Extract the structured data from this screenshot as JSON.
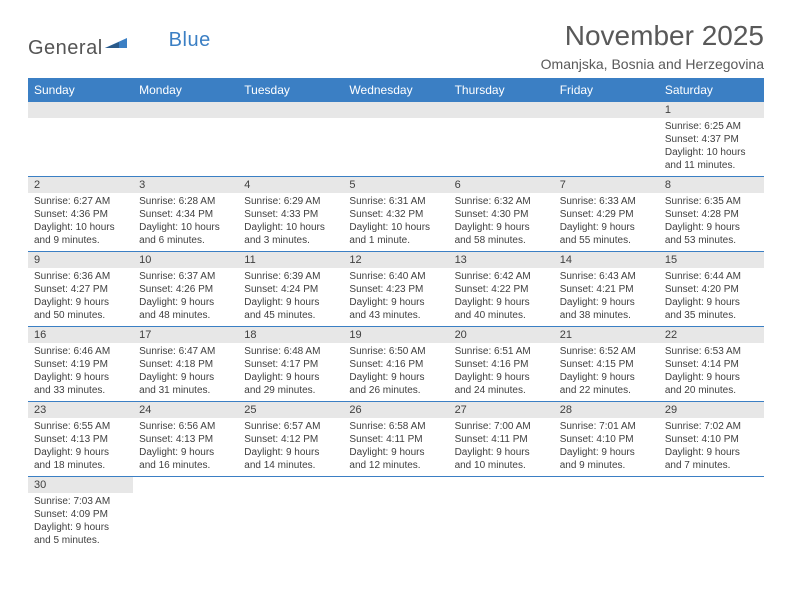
{
  "logo": {
    "part1": "General",
    "part2": "Blue"
  },
  "title": "November 2025",
  "location": "Omanjska, Bosnia and Herzegovina",
  "colors": {
    "header_bg": "#3b7fc4",
    "header_text": "#ffffff",
    "daynum_bg": "#e7e7e7",
    "border": "#3b7fc4",
    "text": "#404040",
    "title_text": "#595959"
  },
  "weekdays": [
    "Sunday",
    "Monday",
    "Tuesday",
    "Wednesday",
    "Thursday",
    "Friday",
    "Saturday"
  ],
  "weeks": [
    [
      null,
      null,
      null,
      null,
      null,
      null,
      {
        "n": "1",
        "sr": "Sunrise: 6:25 AM",
        "ss": "Sunset: 4:37 PM",
        "dl": "Daylight: 10 hours and 11 minutes."
      }
    ],
    [
      {
        "n": "2",
        "sr": "Sunrise: 6:27 AM",
        "ss": "Sunset: 4:36 PM",
        "dl": "Daylight: 10 hours and 9 minutes."
      },
      {
        "n": "3",
        "sr": "Sunrise: 6:28 AM",
        "ss": "Sunset: 4:34 PM",
        "dl": "Daylight: 10 hours and 6 minutes."
      },
      {
        "n": "4",
        "sr": "Sunrise: 6:29 AM",
        "ss": "Sunset: 4:33 PM",
        "dl": "Daylight: 10 hours and 3 minutes."
      },
      {
        "n": "5",
        "sr": "Sunrise: 6:31 AM",
        "ss": "Sunset: 4:32 PM",
        "dl": "Daylight: 10 hours and 1 minute."
      },
      {
        "n": "6",
        "sr": "Sunrise: 6:32 AM",
        "ss": "Sunset: 4:30 PM",
        "dl": "Daylight: 9 hours and 58 minutes."
      },
      {
        "n": "7",
        "sr": "Sunrise: 6:33 AM",
        "ss": "Sunset: 4:29 PM",
        "dl": "Daylight: 9 hours and 55 minutes."
      },
      {
        "n": "8",
        "sr": "Sunrise: 6:35 AM",
        "ss": "Sunset: 4:28 PM",
        "dl": "Daylight: 9 hours and 53 minutes."
      }
    ],
    [
      {
        "n": "9",
        "sr": "Sunrise: 6:36 AM",
        "ss": "Sunset: 4:27 PM",
        "dl": "Daylight: 9 hours and 50 minutes."
      },
      {
        "n": "10",
        "sr": "Sunrise: 6:37 AM",
        "ss": "Sunset: 4:26 PM",
        "dl": "Daylight: 9 hours and 48 minutes."
      },
      {
        "n": "11",
        "sr": "Sunrise: 6:39 AM",
        "ss": "Sunset: 4:24 PM",
        "dl": "Daylight: 9 hours and 45 minutes."
      },
      {
        "n": "12",
        "sr": "Sunrise: 6:40 AM",
        "ss": "Sunset: 4:23 PM",
        "dl": "Daylight: 9 hours and 43 minutes."
      },
      {
        "n": "13",
        "sr": "Sunrise: 6:42 AM",
        "ss": "Sunset: 4:22 PM",
        "dl": "Daylight: 9 hours and 40 minutes."
      },
      {
        "n": "14",
        "sr": "Sunrise: 6:43 AM",
        "ss": "Sunset: 4:21 PM",
        "dl": "Daylight: 9 hours and 38 minutes."
      },
      {
        "n": "15",
        "sr": "Sunrise: 6:44 AM",
        "ss": "Sunset: 4:20 PM",
        "dl": "Daylight: 9 hours and 35 minutes."
      }
    ],
    [
      {
        "n": "16",
        "sr": "Sunrise: 6:46 AM",
        "ss": "Sunset: 4:19 PM",
        "dl": "Daylight: 9 hours and 33 minutes."
      },
      {
        "n": "17",
        "sr": "Sunrise: 6:47 AM",
        "ss": "Sunset: 4:18 PM",
        "dl": "Daylight: 9 hours and 31 minutes."
      },
      {
        "n": "18",
        "sr": "Sunrise: 6:48 AM",
        "ss": "Sunset: 4:17 PM",
        "dl": "Daylight: 9 hours and 29 minutes."
      },
      {
        "n": "19",
        "sr": "Sunrise: 6:50 AM",
        "ss": "Sunset: 4:16 PM",
        "dl": "Daylight: 9 hours and 26 minutes."
      },
      {
        "n": "20",
        "sr": "Sunrise: 6:51 AM",
        "ss": "Sunset: 4:16 PM",
        "dl": "Daylight: 9 hours and 24 minutes."
      },
      {
        "n": "21",
        "sr": "Sunrise: 6:52 AM",
        "ss": "Sunset: 4:15 PM",
        "dl": "Daylight: 9 hours and 22 minutes."
      },
      {
        "n": "22",
        "sr": "Sunrise: 6:53 AM",
        "ss": "Sunset: 4:14 PM",
        "dl": "Daylight: 9 hours and 20 minutes."
      }
    ],
    [
      {
        "n": "23",
        "sr": "Sunrise: 6:55 AM",
        "ss": "Sunset: 4:13 PM",
        "dl": "Daylight: 9 hours and 18 minutes."
      },
      {
        "n": "24",
        "sr": "Sunrise: 6:56 AM",
        "ss": "Sunset: 4:13 PM",
        "dl": "Daylight: 9 hours and 16 minutes."
      },
      {
        "n": "25",
        "sr": "Sunrise: 6:57 AM",
        "ss": "Sunset: 4:12 PM",
        "dl": "Daylight: 9 hours and 14 minutes."
      },
      {
        "n": "26",
        "sr": "Sunrise: 6:58 AM",
        "ss": "Sunset: 4:11 PM",
        "dl": "Daylight: 9 hours and 12 minutes."
      },
      {
        "n": "27",
        "sr": "Sunrise: 7:00 AM",
        "ss": "Sunset: 4:11 PM",
        "dl": "Daylight: 9 hours and 10 minutes."
      },
      {
        "n": "28",
        "sr": "Sunrise: 7:01 AM",
        "ss": "Sunset: 4:10 PM",
        "dl": "Daylight: 9 hours and 9 minutes."
      },
      {
        "n": "29",
        "sr": "Sunrise: 7:02 AM",
        "ss": "Sunset: 4:10 PM",
        "dl": "Daylight: 9 hours and 7 minutes."
      }
    ],
    [
      {
        "n": "30",
        "sr": "Sunrise: 7:03 AM",
        "ss": "Sunset: 4:09 PM",
        "dl": "Daylight: 9 hours and 5 minutes."
      },
      null,
      null,
      null,
      null,
      null,
      null
    ]
  ]
}
